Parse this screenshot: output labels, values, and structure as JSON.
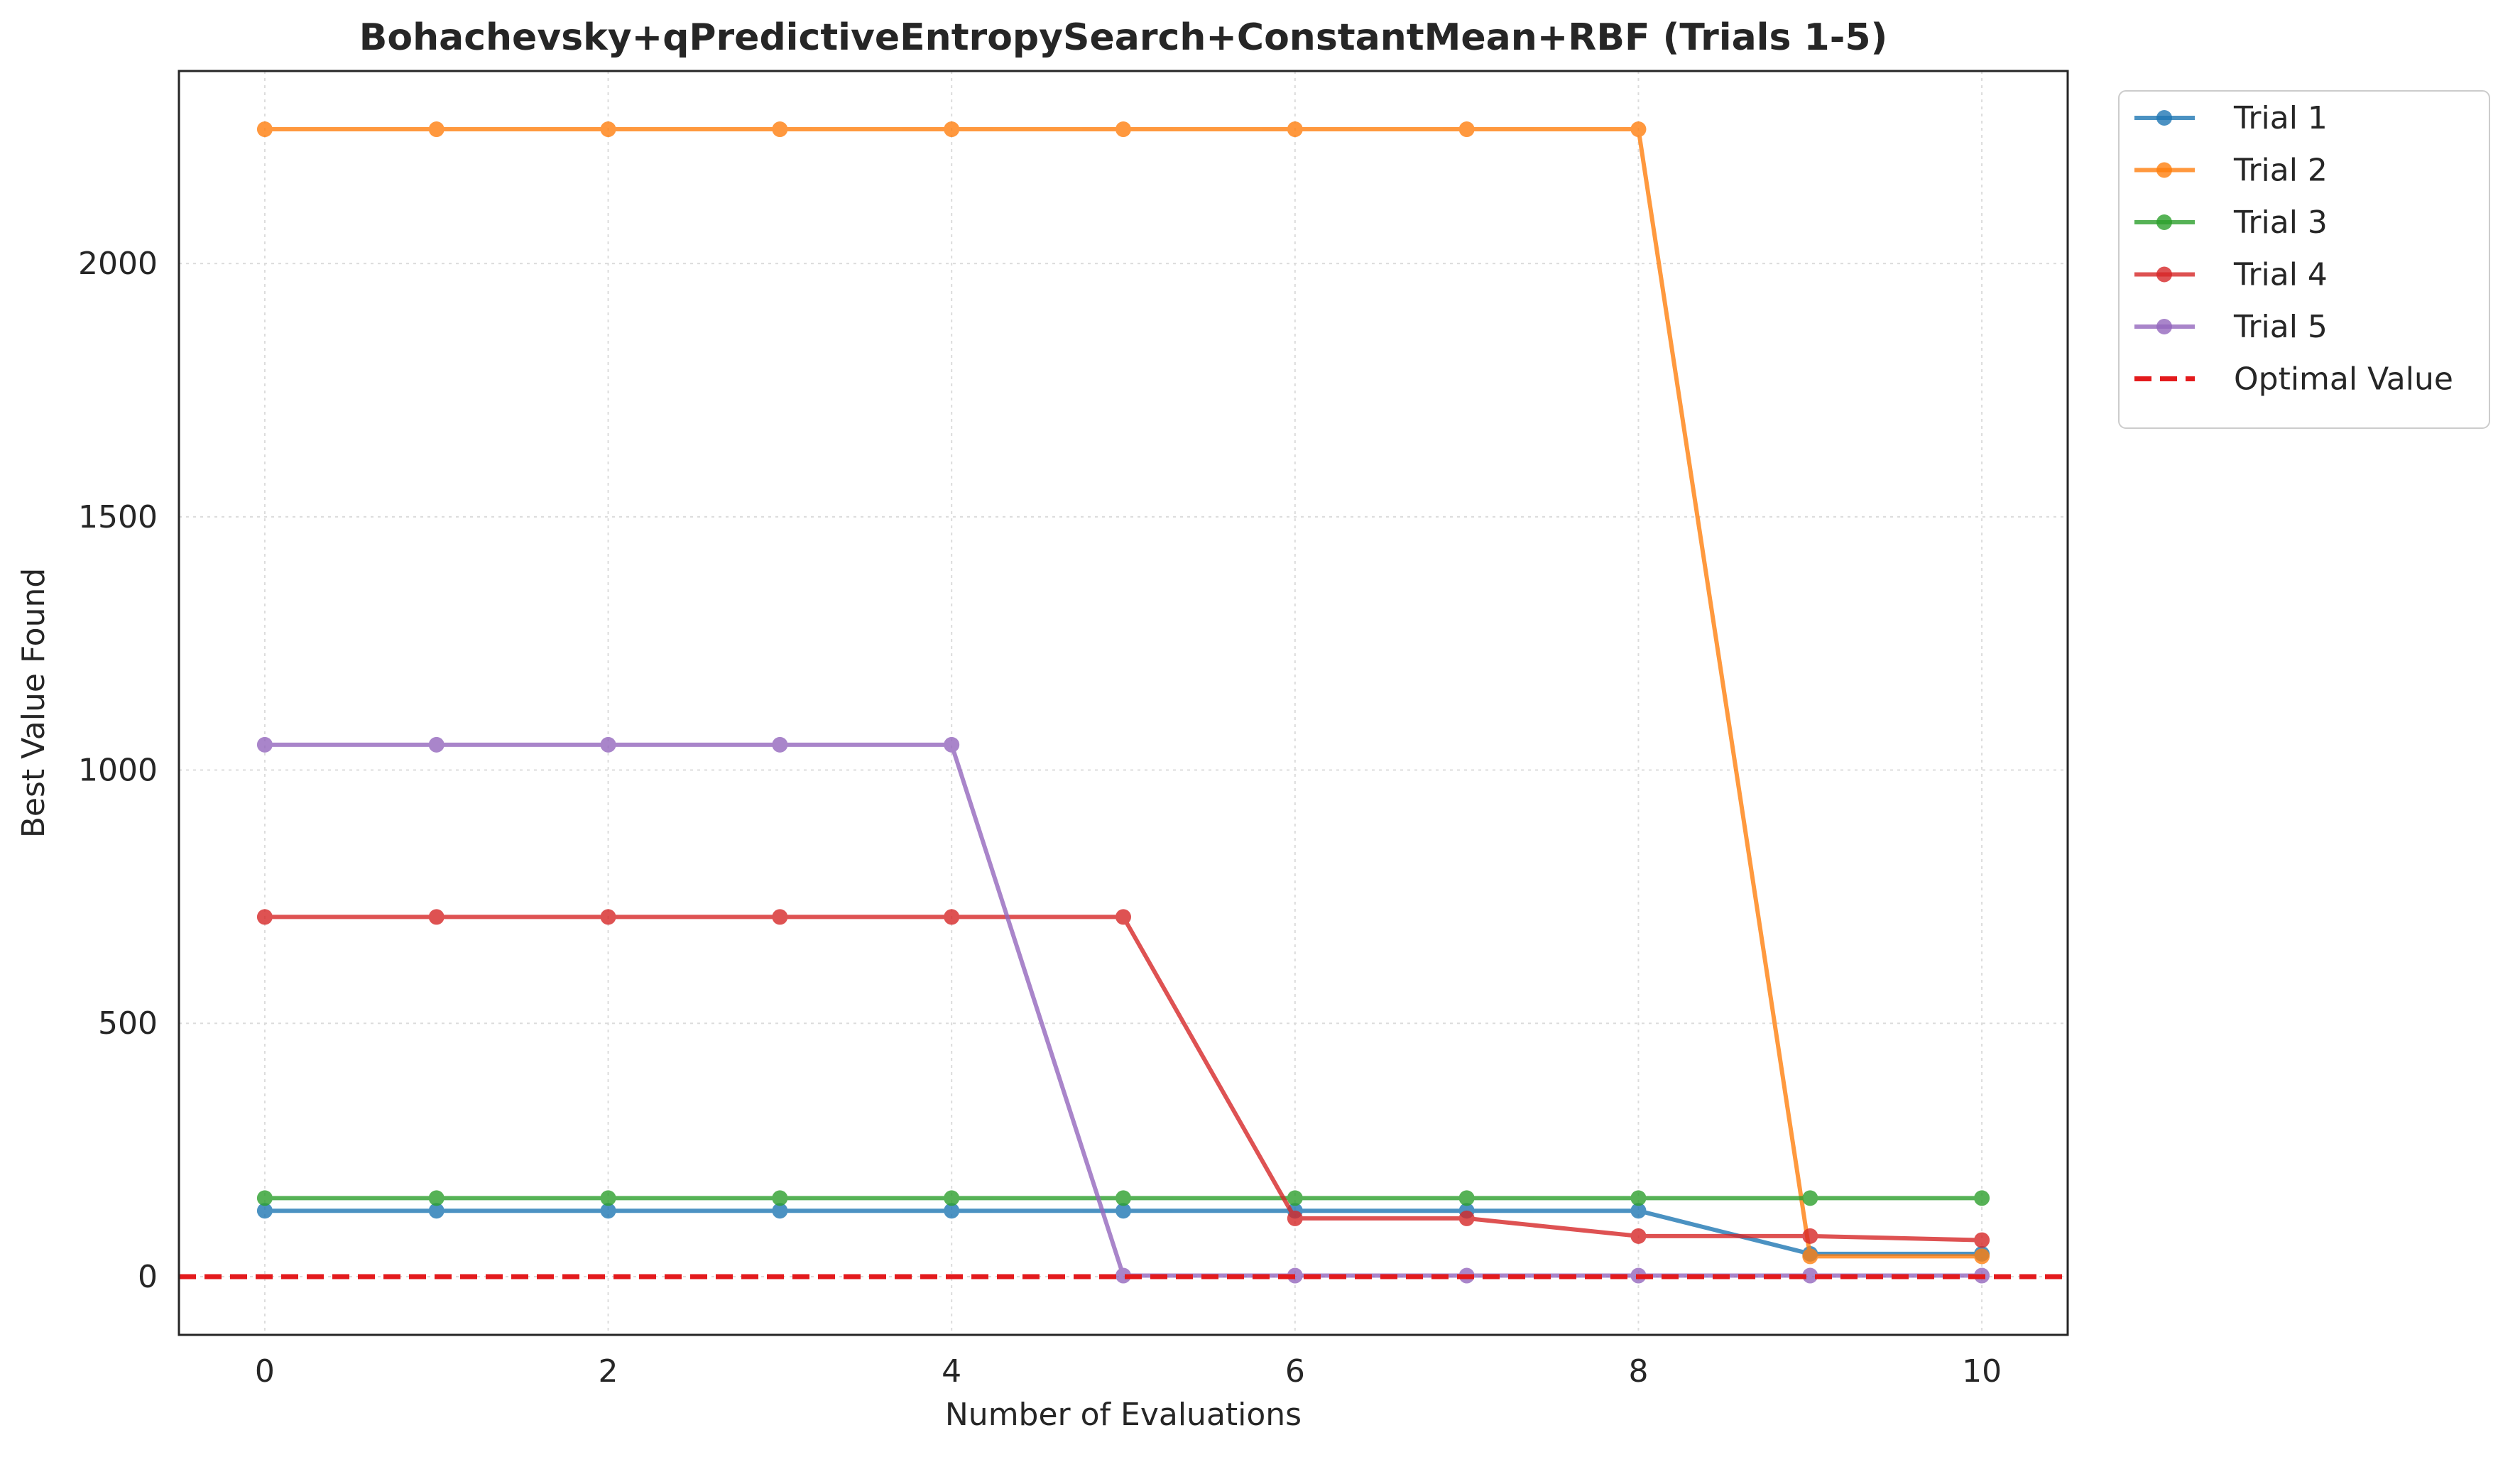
{
  "chart_data": {
    "type": "line",
    "title": "Bohachevsky+qPredictiveEntropySearch+ConstantMean+RBF (Trials 1-5)",
    "xlabel": "Number of Evaluations",
    "ylabel": "Best Value Found",
    "xlim": [
      -0.5,
      10.5
    ],
    "ylim": [
      -115,
      2380
    ],
    "xticks": [
      0,
      2,
      4,
      6,
      8,
      10
    ],
    "yticks": [
      0,
      500,
      1000,
      1500,
      2000
    ],
    "grid": true,
    "legend_position": "outside-top-right",
    "x": [
      0,
      1,
      2,
      3,
      4,
      5,
      6,
      7,
      8,
      9,
      10
    ],
    "series": [
      {
        "name": "Trial 1",
        "color": "#1f77b4",
        "values": [
          130,
          130,
          130,
          130,
          130,
          130,
          130,
          130,
          130,
          45,
          45
        ]
      },
      {
        "name": "Trial 2",
        "color": "#ff7f0e",
        "values": [
          2265,
          2265,
          2265,
          2265,
          2265,
          2265,
          2265,
          2265,
          2265,
          40,
          40
        ]
      },
      {
        "name": "Trial 3",
        "color": "#2ca02c",
        "values": [
          155,
          155,
          155,
          155,
          155,
          155,
          155,
          155,
          155,
          155,
          155
        ]
      },
      {
        "name": "Trial 4",
        "color": "#d62728",
        "values": [
          710,
          710,
          710,
          710,
          710,
          710,
          115,
          115,
          80,
          80,
          72
        ]
      },
      {
        "name": "Trial 5",
        "color": "#9467bd",
        "values": [
          1050,
          1050,
          1050,
          1050,
          1050,
          2,
          2,
          2,
          2,
          2,
          2
        ]
      }
    ],
    "reference_line": {
      "name": "Optimal Value",
      "value": 0,
      "color": "#e31a1c",
      "style": "dashed"
    }
  }
}
